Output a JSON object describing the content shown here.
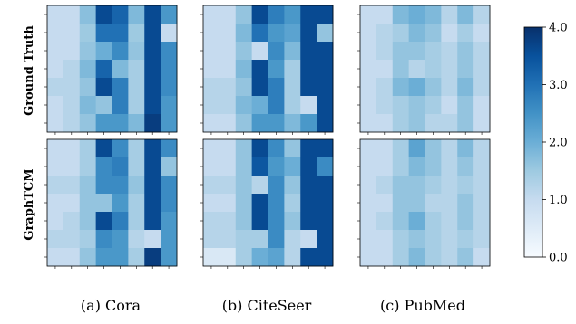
{
  "chart_data": {
    "type": "heatmap",
    "rows": [
      "Ground Truth",
      "GraphTCM"
    ],
    "columns": [
      "(a) Cora",
      "(b) CiteSeer",
      "(c) PubMed"
    ],
    "colorbar": {
      "min": 0.0,
      "max": 4.0,
      "ticks": [
        0.0,
        1.0,
        2.0,
        3.0,
        4.0
      ],
      "tick_labels": [
        "0.0",
        "1.0",
        "2.0",
        "3.0",
        "4.0"
      ],
      "colormap": "Blues",
      "stops": [
        "#f7fbff",
        "#deebf7",
        "#c6dbef",
        "#9ecae1",
        "#6baed6",
        "#4292c6",
        "#2171b5",
        "#08519c",
        "#08306b"
      ]
    },
    "matrices": [
      {
        "row": "Ground Truth",
        "column": "(a) Cora",
        "values": [
          [
            1.0,
            1.0,
            1.7,
            3.6,
            3.2,
            1.8,
            3.6,
            2.4
          ],
          [
            1.0,
            1.0,
            1.5,
            3.0,
            3.0,
            1.5,
            3.6,
            1.0
          ],
          [
            1.0,
            1.0,
            1.6,
            2.0,
            2.6,
            1.6,
            3.6,
            2.6
          ],
          [
            1.0,
            1.2,
            1.8,
            3.2,
            1.8,
            1.4,
            3.6,
            2.6
          ],
          [
            1.2,
            1.2,
            1.6,
            3.6,
            2.8,
            1.4,
            3.6,
            2.6
          ],
          [
            1.0,
            1.2,
            1.8,
            1.6,
            2.8,
            1.4,
            3.6,
            2.4
          ],
          [
            1.0,
            1.2,
            1.6,
            2.4,
            2.4,
            1.8,
            3.8,
            2.4
          ]
        ]
      },
      {
        "row": "Ground Truth",
        "column": "(b) CiteSeer",
        "values": [
          [
            1.0,
            1.0,
            1.6,
            3.6,
            2.8,
            2.4,
            3.6,
            3.6
          ],
          [
            1.0,
            1.0,
            1.8,
            3.0,
            2.4,
            2.2,
            3.6,
            1.6
          ],
          [
            1.0,
            1.0,
            1.6,
            1.0,
            2.6,
            1.8,
            3.6,
            3.6
          ],
          [
            1.0,
            1.0,
            1.8,
            3.6,
            2.4,
            1.4,
            3.6,
            3.6
          ],
          [
            1.2,
            1.2,
            1.6,
            3.6,
            2.8,
            1.4,
            3.6,
            3.6
          ],
          [
            1.2,
            1.2,
            1.8,
            2.0,
            2.8,
            1.4,
            1.0,
            3.6
          ],
          [
            1.0,
            1.0,
            1.6,
            2.4,
            2.4,
            1.8,
            2.4,
            3.6
          ]
        ]
      },
      {
        "row": "Ground Truth",
        "column": "(c) PubMed",
        "values": [
          [
            1.0,
            1.0,
            1.8,
            2.0,
            1.8,
            1.2,
            1.8,
            1.2
          ],
          [
            1.0,
            1.2,
            1.4,
            1.8,
            1.6,
            1.0,
            1.4,
            1.0
          ],
          [
            1.0,
            1.2,
            1.6,
            1.6,
            1.4,
            1.2,
            1.6,
            1.2
          ],
          [
            1.0,
            1.0,
            1.6,
            1.2,
            1.4,
            1.2,
            1.6,
            1.2
          ],
          [
            1.0,
            1.2,
            1.8,
            2.0,
            1.6,
            1.2,
            1.8,
            1.2
          ],
          [
            1.0,
            1.2,
            1.4,
            1.6,
            1.4,
            1.0,
            1.6,
            1.0
          ],
          [
            1.0,
            1.0,
            1.4,
            1.6,
            1.2,
            1.2,
            1.6,
            1.0
          ]
        ]
      },
      {
        "row": "GraphTCM",
        "column": "(a) Cora",
        "values": [
          [
            1.0,
            1.0,
            1.4,
            3.6,
            2.6,
            1.4,
            3.6,
            2.6
          ],
          [
            1.0,
            1.0,
            1.4,
            2.6,
            2.8,
            1.4,
            3.6,
            1.6
          ],
          [
            1.2,
            1.2,
            1.6,
            2.6,
            2.6,
            1.6,
            3.6,
            2.6
          ],
          [
            1.0,
            1.0,
            1.6,
            1.6,
            2.4,
            1.4,
            3.6,
            2.6
          ],
          [
            1.0,
            1.2,
            1.6,
            3.6,
            2.8,
            1.4,
            3.6,
            2.4
          ],
          [
            1.2,
            1.2,
            1.4,
            2.6,
            2.4,
            1.2,
            1.0,
            2.4
          ],
          [
            1.0,
            1.0,
            1.6,
            2.4,
            2.4,
            1.4,
            3.8,
            2.4
          ]
        ]
      },
      {
        "row": "GraphTCM",
        "column": "(b) CiteSeer",
        "values": [
          [
            1.0,
            1.0,
            1.6,
            3.6,
            2.6,
            1.6,
            3.6,
            3.6
          ],
          [
            1.0,
            1.0,
            1.6,
            3.4,
            2.4,
            2.0,
            3.6,
            2.6
          ],
          [
            1.2,
            1.2,
            1.6,
            1.2,
            2.6,
            1.6,
            3.6,
            3.6
          ],
          [
            1.0,
            1.0,
            1.6,
            3.6,
            2.6,
            1.4,
            3.6,
            3.6
          ],
          [
            1.2,
            1.2,
            1.6,
            3.6,
            2.6,
            1.6,
            3.6,
            3.6
          ],
          [
            1.2,
            1.2,
            1.4,
            1.4,
            2.6,
            1.2,
            1.0,
            3.6
          ],
          [
            0.6,
            0.6,
            1.4,
            2.0,
            2.2,
            1.2,
            3.6,
            3.6
          ]
        ]
      },
      {
        "row": "GraphTCM",
        "column": "(c) PubMed",
        "values": [
          [
            1.0,
            1.0,
            1.4,
            2.2,
            1.6,
            1.2,
            1.8,
            1.2
          ],
          [
            1.0,
            1.0,
            1.4,
            1.8,
            1.6,
            1.2,
            1.6,
            1.2
          ],
          [
            1.0,
            1.2,
            1.6,
            1.6,
            1.4,
            1.2,
            1.4,
            1.2
          ],
          [
            1.0,
            1.0,
            1.6,
            1.6,
            1.2,
            1.2,
            1.6,
            1.2
          ],
          [
            1.0,
            1.2,
            1.6,
            2.0,
            1.4,
            1.2,
            1.6,
            1.2
          ],
          [
            1.0,
            1.0,
            1.4,
            1.6,
            1.4,
            1.2,
            1.4,
            1.2
          ],
          [
            1.0,
            1.0,
            1.4,
            1.8,
            1.4,
            1.2,
            1.6,
            1.0
          ]
        ]
      }
    ]
  }
}
